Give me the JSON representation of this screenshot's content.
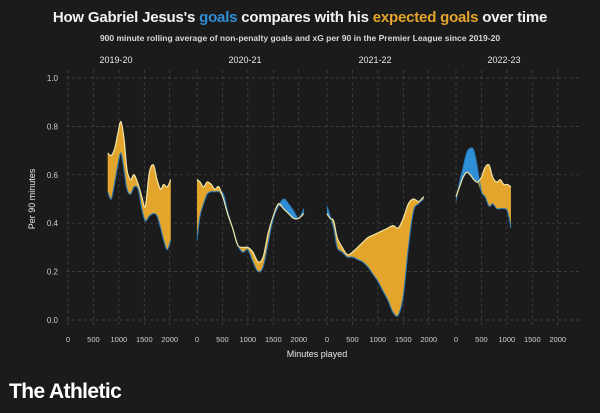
{
  "header": {
    "title_pre": "How Gabriel Jesus's ",
    "title_goals": "goals",
    "title_mid": " compares with his ",
    "title_xg": "expected goals",
    "title_post": " over time",
    "subtitle": "900 minute rolling average of non-penalty goals and xG per 90 in the Premier League since 2019-20"
  },
  "brand": "The Athletic",
  "colors": {
    "background": "#1b1b1b",
    "goals": "#2f8fd6",
    "xg": "#e4a52d",
    "grid": "#4a4a4a",
    "text": "#e8e8e8"
  },
  "chart_data": {
    "type": "area",
    "ylabel": "Per 90 minutes",
    "xlabel": "Minutes played",
    "ylim": [
      0,
      1.0
    ],
    "yticks": [
      "0.0",
      "0.2",
      "0.4",
      "0.6",
      "0.8",
      "1.0"
    ],
    "xlim": [
      0,
      2300
    ],
    "xticks": [
      "0",
      "500",
      "1000",
      "1500",
      "2000"
    ],
    "grid": true,
    "panels": [
      {
        "season": "2019-20",
        "x": [
          780,
          850,
          920,
          980,
          1040,
          1100,
          1160,
          1230,
          1300,
          1380,
          1450,
          1520,
          1600,
          1680,
          1750,
          1820,
          1880,
          1950,
          2020
        ],
        "goals": [
          0.53,
          0.5,
          0.57,
          0.64,
          0.69,
          0.62,
          0.54,
          0.52,
          0.55,
          0.54,
          0.46,
          0.41,
          0.43,
          0.44,
          0.43,
          0.38,
          0.33,
          0.29,
          0.33
        ],
        "xg": [
          0.69,
          0.68,
          0.71,
          0.77,
          0.82,
          0.75,
          0.62,
          0.58,
          0.6,
          0.56,
          0.51,
          0.47,
          0.61,
          0.64,
          0.58,
          0.54,
          0.56,
          0.55,
          0.58
        ]
      },
      {
        "season": "2020-21",
        "x": [
          0,
          60,
          130,
          200,
          280,
          350,
          430,
          520,
          600,
          700,
          800,
          900,
          1000,
          1100,
          1200,
          1300,
          1400,
          1500,
          1600,
          1700,
          1800,
          1900,
          2000,
          2100
        ],
        "goals": [
          0.33,
          0.43,
          0.48,
          0.52,
          0.53,
          0.53,
          0.53,
          0.52,
          0.45,
          0.38,
          0.31,
          0.28,
          0.29,
          0.24,
          0.2,
          0.22,
          0.32,
          0.42,
          0.47,
          0.5,
          0.48,
          0.45,
          0.42,
          0.46
        ],
        "xg": [
          0.58,
          0.57,
          0.55,
          0.57,
          0.56,
          0.54,
          0.55,
          0.5,
          0.44,
          0.38,
          0.31,
          0.3,
          0.3,
          0.28,
          0.24,
          0.26,
          0.36,
          0.43,
          0.48,
          0.46,
          0.44,
          0.42,
          0.42,
          0.44
        ]
      },
      {
        "season": "2021-22",
        "x": [
          0,
          60,
          130,
          200,
          300,
          400,
          500,
          600,
          700,
          800,
          900,
          1000,
          1100,
          1200,
          1300,
          1400,
          1500,
          1600,
          1700,
          1800,
          1900
        ],
        "goals": [
          0.47,
          0.43,
          0.38,
          0.3,
          0.28,
          0.26,
          0.26,
          0.25,
          0.24,
          0.22,
          0.19,
          0.16,
          0.12,
          0.08,
          0.03,
          0.02,
          0.1,
          0.3,
          0.45,
          0.48,
          0.5
        ],
        "xg": [
          0.44,
          0.42,
          0.41,
          0.34,
          0.3,
          0.27,
          0.28,
          0.3,
          0.32,
          0.34,
          0.35,
          0.36,
          0.37,
          0.38,
          0.39,
          0.38,
          0.42,
          0.48,
          0.5,
          0.49,
          0.51
        ]
      },
      {
        "season": "2022-23",
        "x": [
          0,
          70,
          140,
          210,
          280,
          350,
          420,
          500,
          570,
          650,
          720,
          800,
          870,
          940,
          1010,
          1080
        ],
        "goals": [
          0.49,
          0.57,
          0.63,
          0.69,
          0.71,
          0.7,
          0.63,
          0.53,
          0.51,
          0.47,
          0.48,
          0.46,
          0.46,
          0.46,
          0.45,
          0.38
        ],
        "xg": [
          0.51,
          0.55,
          0.59,
          0.61,
          0.6,
          0.58,
          0.57,
          0.59,
          0.63,
          0.64,
          0.59,
          0.57,
          0.58,
          0.56,
          0.56,
          0.55
        ]
      }
    ]
  }
}
